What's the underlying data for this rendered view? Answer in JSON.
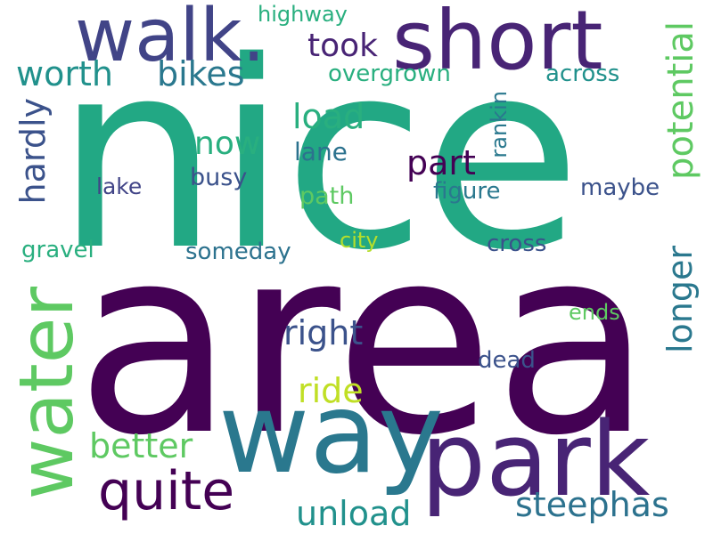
{
  "words": {
    "area": "area",
    "nice": "nice",
    "walk": "walk.",
    "short": "short",
    "way": "way",
    "park": "park",
    "water": "water",
    "quite": "quite",
    "worth": "worth",
    "bikes": "bikes",
    "took": "took",
    "highway": "highway",
    "overgrown": "overgrown",
    "across": "across",
    "load": "load",
    "now": "now",
    "lane": "lane",
    "part": "part",
    "lake": "lake",
    "busy": "busy",
    "path": "path",
    "figure": "figure",
    "maybe": "maybe",
    "city": "city",
    "cross": "cross",
    "gravel": "gravel",
    "someday": "someday",
    "ends": "ends",
    "right": "right",
    "dead": "dead",
    "ride": "ride",
    "better": "better",
    "unload": "unload",
    "steephas": "steephas",
    "hardly": "hardly",
    "rankin": "rankin",
    "potential": "potential",
    "longer": "longer"
  },
  "palette": [
    "#440154",
    "#482475",
    "#414487",
    "#3b528b",
    "#2c728e",
    "#21918c",
    "#29af7f",
    "#22a884",
    "#5ec962",
    "#b5de2b",
    "#c0df25"
  ]
}
